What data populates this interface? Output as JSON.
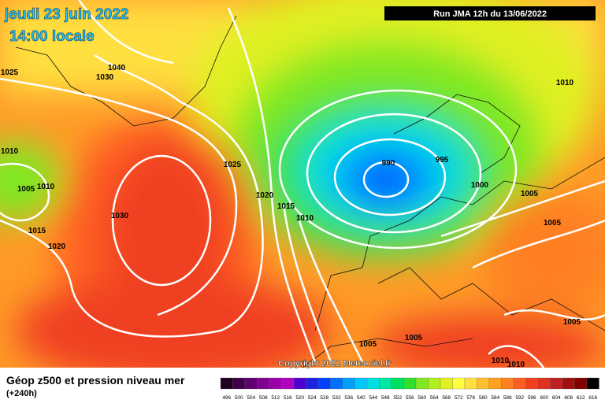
{
  "header": {
    "date": "jeudi 23 juin 2022",
    "time": "14:00 locale",
    "run": "Run JMA 12h du 13/06/2022"
  },
  "map": {
    "isobar_labels": [
      1040,
      1030,
      1025,
      1010,
      1005,
      1010,
      1015,
      1020,
      1030,
      1025,
      1020,
      1015,
      1010,
      990,
      995,
      1000,
      1005,
      1010,
      1005,
      1005,
      1005,
      1005,
      1010,
      1010
    ],
    "copyright": "Copyright 2022 Meteociel.fr"
  },
  "legend": {
    "title": "Géop z500 et pression niveau mer",
    "lead": "(+240h)",
    "scale": [
      {
        "label": 496,
        "color": "#200020"
      },
      {
        "label": 500,
        "color": "#40004a"
      },
      {
        "label": 504,
        "color": "#600070"
      },
      {
        "label": 508,
        "color": "#800090"
      },
      {
        "label": 512,
        "color": "#9a00a8"
      },
      {
        "label": 516,
        "color": "#b000c0"
      },
      {
        "label": 520,
        "color": "#5000d0"
      },
      {
        "label": 524,
        "color": "#2020e0"
      },
      {
        "label": 528,
        "color": "#0040ff"
      },
      {
        "label": 532,
        "color": "#0070ff"
      },
      {
        "label": 536,
        "color": "#00a0ff"
      },
      {
        "label": 540,
        "color": "#00c8ff"
      },
      {
        "label": 544,
        "color": "#00e0e0"
      },
      {
        "label": 548,
        "color": "#00e8a0"
      },
      {
        "label": 552,
        "color": "#00e060"
      },
      {
        "label": 556,
        "color": "#30e030"
      },
      {
        "label": 560,
        "color": "#80e820"
      },
      {
        "label": 564,
        "color": "#b0f020"
      },
      {
        "label": 568,
        "color": "#e0f020"
      },
      {
        "label": 572,
        "color": "#ffff40"
      },
      {
        "label": 576,
        "color": "#ffe040"
      },
      {
        "label": 580,
        "color": "#ffc030"
      },
      {
        "label": 584,
        "color": "#ffa020"
      },
      {
        "label": 588,
        "color": "#ff8020"
      },
      {
        "label": 592,
        "color": "#ff6020"
      },
      {
        "label": 596,
        "color": "#f04020"
      },
      {
        "label": 600,
        "color": "#e03020"
      },
      {
        "label": 604,
        "color": "#c02020"
      },
      {
        "label": 608,
        "color": "#a01010"
      },
      {
        "label": 612,
        "color": "#800000"
      },
      {
        "label": 616,
        "color": "#000000"
      }
    ]
  }
}
